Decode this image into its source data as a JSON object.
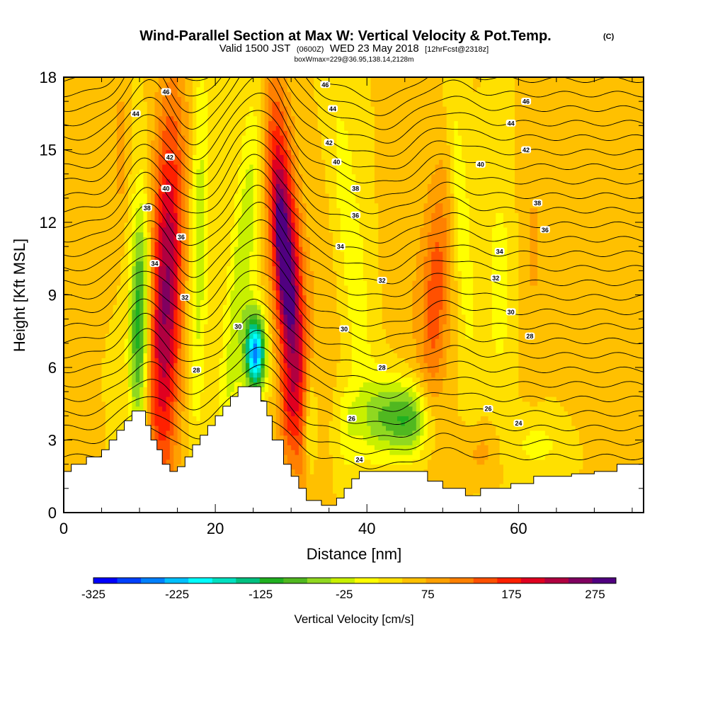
{
  "header": {
    "title": "Wind-Parallel Section at Max W: Vertical Velocity & Pot.Temp.",
    "copyright": "(C)",
    "valid_prefix": "Valid 1500 JST",
    "valid_utc": "(0600Z)",
    "valid_date": "WED 23 May 2018",
    "forecast_info": "[12hrFcst@2318z]",
    "box_info": "boxWmax=229@36.95,138.14,2128m"
  },
  "colors": {
    "palette": [
      "#0000ff",
      "#0040ff",
      "#0080ff",
      "#00c0ff",
      "#00ffff",
      "#00e0c0",
      "#00c080",
      "#20b020",
      "#50b820",
      "#90d820",
      "#c8f000",
      "#ffff00",
      "#ffe000",
      "#ffc000",
      "#ffa000",
      "#ff8000",
      "#ff5000",
      "#ff2000",
      "#e00020",
      "#b00040",
      "#800060",
      "#500080"
    ],
    "terrain": "#ffffff",
    "contour": "#000000"
  },
  "chart_data": {
    "type": "heatmap",
    "title": "Wind-Parallel Section at Max W: Vertical Velocity & Pot.Temp.",
    "xlabel": "Distance [nm]",
    "ylabel": "Height [Kft MSL]",
    "xlim": [
      0,
      76.5
    ],
    "ylim": [
      0,
      18
    ],
    "x_ticks": [
      0,
      20,
      40,
      60
    ],
    "y_ticks": [
      0,
      3,
      6,
      9,
      12,
      15,
      18
    ],
    "x_tick_labels": [
      "0",
      "20",
      "40",
      "60"
    ],
    "y_tick_labels": [
      "0",
      "3",
      "6",
      "9",
      "12",
      "15",
      "18"
    ],
    "colorbar": {
      "label": "Vertical Velocity [cm/s]",
      "min": -325,
      "max": 300,
      "step": 25,
      "tick_values": [
        -325,
        -225,
        -125,
        -25,
        75,
        175,
        275
      ],
      "tick_labels": [
        "-325",
        "-225",
        "-125",
        "-25",
        "75",
        "175",
        "275"
      ]
    },
    "terrain_profile": {
      "x": [
        0,
        1,
        1,
        3,
        3,
        5,
        5,
        6,
        6,
        7,
        7,
        8,
        8,
        9,
        9,
        10,
        10,
        10.8,
        10.8,
        11.5,
        11.5,
        12.3,
        12.3,
        13,
        13,
        14,
        14,
        15,
        15,
        16,
        16,
        17,
        17,
        18,
        18,
        19,
        19,
        20,
        20,
        21,
        21,
        22,
        22,
        23,
        23,
        24,
        24,
        26,
        26,
        26.8,
        26.8,
        27.5,
        27.5,
        29,
        29,
        30,
        30,
        31,
        31,
        32,
        32,
        34,
        34,
        36,
        36,
        37,
        37,
        38,
        38,
        39,
        39,
        48,
        48,
        50,
        50,
        53,
        53,
        55,
        55,
        59,
        59,
        62,
        62,
        67,
        67,
        70,
        70,
        73,
        73,
        76.5
      ],
      "y": [
        1.7,
        1.7,
        2.0,
        2.0,
        2.3,
        2.3,
        2.6,
        2.6,
        3.0,
        3.0,
        3.4,
        3.4,
        3.8,
        3.8,
        4.2,
        4.2,
        4.2,
        4.2,
        3.6,
        3.6,
        3.0,
        3.0,
        2.6,
        2.6,
        2.0,
        2.0,
        1.7,
        1.7,
        1.9,
        1.9,
        2.3,
        2.3,
        2.8,
        2.8,
        3.2,
        3.2,
        3.6,
        3.6,
        4.0,
        4.0,
        4.4,
        4.4,
        4.8,
        4.8,
        5.2,
        5.2,
        5.2,
        5.2,
        4.6,
        4.6,
        4.0,
        4.0,
        3.0,
        3.0,
        2.0,
        2.0,
        1.5,
        1.5,
        1.0,
        1.0,
        0.5,
        0.5,
        0.3,
        0.3,
        0.6,
        0.6,
        1.0,
        1.0,
        1.4,
        1.4,
        1.7,
        1.7,
        1.3,
        1.3,
        1.0,
        1.0,
        0.7,
        0.7,
        1.0,
        1.0,
        1.2,
        1.2,
        1.5,
        1.5,
        1.6,
        1.6,
        1.7,
        1.7,
        2.0,
        2.0
      ]
    },
    "vertical_velocity_features": [
      {
        "x": 13.5,
        "y": 9.0,
        "x_halfwidth": 2.2,
        "y_halfwidth": 8.0,
        "tilt": 0.09,
        "value": 180
      },
      {
        "x": 10.0,
        "y": 8.0,
        "x_halfwidth": 1.3,
        "y_halfwidth": 5.0,
        "tilt": 0.05,
        "value": -150
      },
      {
        "x": 7.5,
        "y": 15.0,
        "x_halfwidth": 1.0,
        "y_halfwidth": 3.0,
        "tilt": 0.0,
        "value": 40
      },
      {
        "x": 17.8,
        "y": 11.0,
        "x_halfwidth": 1.2,
        "y_halfwidth": 7.5,
        "tilt": 0.05,
        "value": -70
      },
      {
        "x": 23.5,
        "y": 10.0,
        "x_halfwidth": 1.8,
        "y_halfwidth": 9.0,
        "tilt": 0.3,
        "value": -70
      },
      {
        "x": 25.3,
        "y": 6.6,
        "x_halfwidth": 1.3,
        "y_halfwidth": 1.6,
        "tilt": 0.0,
        "value": -260
      },
      {
        "x": 29.5,
        "y": 10.0,
        "x_halfwidth": 2.0,
        "y_halfwidth": 7.5,
        "tilt": -0.25,
        "value": 200
      },
      {
        "x": 29.0,
        "y": 10.5,
        "x_halfwidth": 0.8,
        "y_halfwidth": 2.5,
        "tilt": -0.25,
        "value": 90
      },
      {
        "x": 29.5,
        "y": 4.0,
        "x_halfwidth": 1.3,
        "y_halfwidth": 2.0,
        "tilt": 0.0,
        "value": 50
      },
      {
        "x": 32.5,
        "y": 3.5,
        "x_halfwidth": 0.9,
        "y_halfwidth": 2.5,
        "tilt": 0.0,
        "value": -80
      },
      {
        "x": 38.0,
        "y": 11.0,
        "x_halfwidth": 1.8,
        "y_halfwidth": 7.0,
        "tilt": -0.3,
        "value": -45
      },
      {
        "x": 37.5,
        "y": 3.5,
        "x_halfwidth": 1.5,
        "y_halfwidth": 2.0,
        "tilt": 0.0,
        "value": -40
      },
      {
        "x": 42.5,
        "y": 4.0,
        "x_halfwidth": 3.5,
        "y_halfwidth": 1.6,
        "tilt": 0.0,
        "value": -95
      },
      {
        "x": 46.0,
        "y": 3.8,
        "x_halfwidth": 2.5,
        "y_halfwidth": 1.5,
        "tilt": 0.0,
        "value": -90
      },
      {
        "x": 45.0,
        "y": 10.5,
        "x_halfwidth": 2.0,
        "y_halfwidth": 5.0,
        "tilt": 0.0,
        "value": 20
      },
      {
        "x": 49.0,
        "y": 9.0,
        "x_halfwidth": 2.0,
        "y_halfwidth": 5.0,
        "tilt": 0.15,
        "value": 90
      },
      {
        "x": 52.5,
        "y": 12.0,
        "x_halfwidth": 1.2,
        "y_halfwidth": 6.0,
        "tilt": -0.2,
        "value": -50
      },
      {
        "x": 57.5,
        "y": 9.5,
        "x_halfwidth": 1.5,
        "y_halfwidth": 4.0,
        "tilt": 0.0,
        "value": -45
      },
      {
        "x": 62.0,
        "y": 11.0,
        "x_halfwidth": 1.5,
        "y_halfwidth": 4.0,
        "tilt": 0.0,
        "value": 30
      },
      {
        "x": 62.5,
        "y": 2.8,
        "x_halfwidth": 3.5,
        "y_halfwidth": 1.0,
        "tilt": 0.0,
        "value": -35
      },
      {
        "x": 55.0,
        "y": 2.5,
        "x_halfwidth": 2.0,
        "y_halfwidth": 1.0,
        "tilt": 0.0,
        "value": 35
      },
      {
        "x": 70.0,
        "y": 6.5,
        "x_halfwidth": 3.0,
        "y_halfwidth": 3.0,
        "tilt": 0.0,
        "value": 15
      },
      {
        "x": 34.0,
        "y": 9.5,
        "x_halfwidth": 2.0,
        "y_halfwidth": 5.0,
        "tilt": -0.2,
        "value": 15
      }
    ],
    "potential_temperature_levels": {
      "base_height": [
        2.3,
        2.9,
        3.5,
        4.1,
        4.7,
        5.3,
        5.9,
        6.5,
        7.1,
        7.7,
        8.3,
        8.9,
        9.5,
        10.1,
        10.7,
        11.3,
        11.9,
        12.5,
        13.1,
        13.7,
        14.3,
        14.9,
        15.5,
        16.1,
        16.7,
        17.3,
        17.9
      ],
      "wave_perturbations": [
        {
          "x": 11.0,
          "width": 4.0,
          "amplitude": 1.6
        },
        {
          "x": 25.5,
          "width": 5.0,
          "amplitude": 2.2
        },
        {
          "x": 42.0,
          "width": 6.0,
          "amplitude": -0.5
        },
        {
          "x": 50.0,
          "width": 4.0,
          "amplitude": 0.4
        }
      ]
    },
    "contour_labels": [
      {
        "text": "46",
        "x": 13.5,
        "y": 17.4
      },
      {
        "text": "44",
        "x": 9.5,
        "y": 16.5
      },
      {
        "text": "42",
        "x": 14.0,
        "y": 14.7
      },
      {
        "text": "40",
        "x": 13.5,
        "y": 13.4
      },
      {
        "text": "38",
        "x": 11.0,
        "y": 12.6
      },
      {
        "text": "36",
        "x": 15.5,
        "y": 11.4
      },
      {
        "text": "34",
        "x": 12.0,
        "y": 10.3
      },
      {
        "text": "32",
        "x": 16.0,
        "y": 8.9
      },
      {
        "text": "30",
        "x": 23.0,
        "y": 7.7
      },
      {
        "text": "28",
        "x": 17.5,
        "y": 5.9
      },
      {
        "text": "46",
        "x": 34.5,
        "y": 17.7
      },
      {
        "text": "44",
        "x": 35.5,
        "y": 16.7
      },
      {
        "text": "42",
        "x": 35.0,
        "y": 15.3
      },
      {
        "text": "40",
        "x": 36.0,
        "y": 14.5
      },
      {
        "text": "38",
        "x": 38.5,
        "y": 13.4
      },
      {
        "text": "36",
        "x": 38.5,
        "y": 12.3
      },
      {
        "text": "34",
        "x": 36.5,
        "y": 11.0
      },
      {
        "text": "32",
        "x": 42.0,
        "y": 9.6
      },
      {
        "text": "30",
        "x": 37.0,
        "y": 7.6
      },
      {
        "text": "28",
        "x": 42.0,
        "y": 6.0
      },
      {
        "text": "26",
        "x": 38.0,
        "y": 3.9
      },
      {
        "text": "24",
        "x": 39.0,
        "y": 2.2
      },
      {
        "text": "46",
        "x": 61.0,
        "y": 17.0
      },
      {
        "text": "44",
        "x": 59.0,
        "y": 16.1
      },
      {
        "text": "42",
        "x": 61.0,
        "y": 15.0
      },
      {
        "text": "40",
        "x": 55.0,
        "y": 14.4
      },
      {
        "text": "38",
        "x": 62.5,
        "y": 12.8
      },
      {
        "text": "36",
        "x": 63.5,
        "y": 11.7
      },
      {
        "text": "34",
        "x": 57.5,
        "y": 10.8
      },
      {
        "text": "32",
        "x": 57.0,
        "y": 9.7
      },
      {
        "text": "30",
        "x": 59.0,
        "y": 8.3
      },
      {
        "text": "28",
        "x": 61.5,
        "y": 7.3
      },
      {
        "text": "26",
        "x": 56.0,
        "y": 4.3
      },
      {
        "text": "24",
        "x": 60.0,
        "y": 3.7
      }
    ]
  }
}
